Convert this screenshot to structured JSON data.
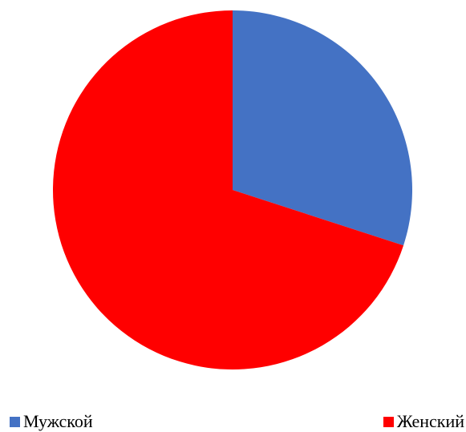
{
  "chart_data": {
    "type": "pie",
    "title": "",
    "slices": [
      {
        "label": "Мужской",
        "value": 30,
        "color": "#4472C4"
      },
      {
        "label": "Женский",
        "value": 70,
        "color": "#FF0000"
      }
    ],
    "start_angle_deg": 0,
    "direction": "clockwise",
    "legend_position": "bottom"
  }
}
